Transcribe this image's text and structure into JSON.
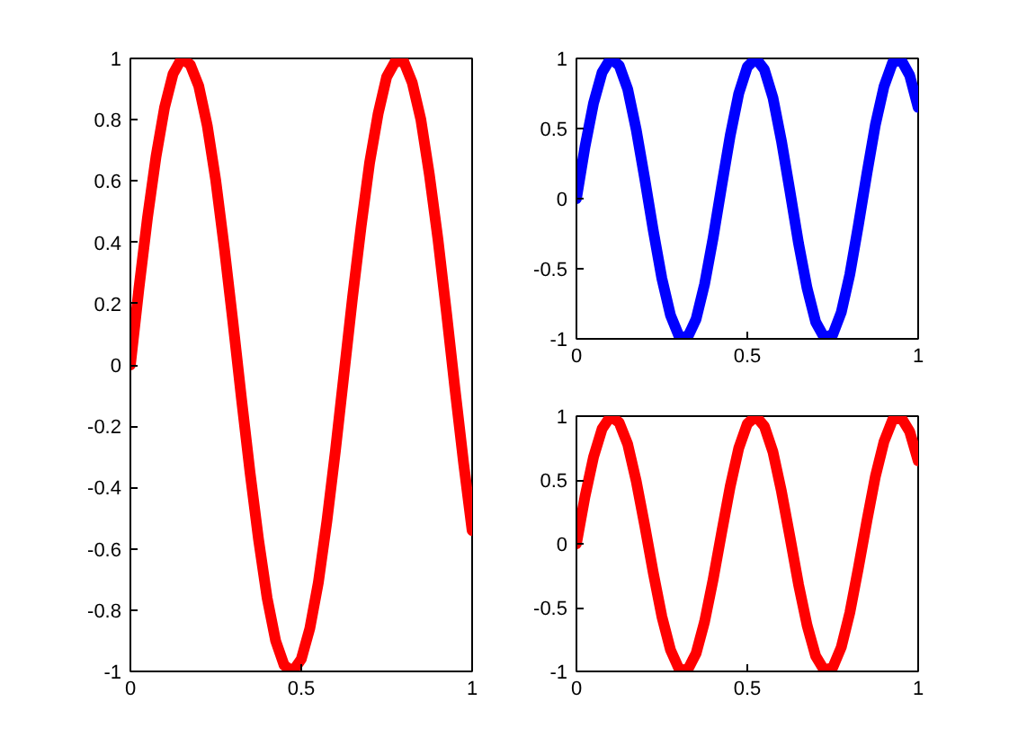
{
  "chart_data": [
    {
      "type": "line",
      "x": [
        0,
        0.025,
        0.05,
        0.075,
        0.1,
        0.125,
        0.15,
        0.175,
        0.2,
        0.225,
        0.25,
        0.275,
        0.3,
        0.325,
        0.35,
        0.375,
        0.4,
        0.425,
        0.45,
        0.475,
        0.5,
        0.525,
        0.55,
        0.575,
        0.6,
        0.625,
        0.65,
        0.675,
        0.7,
        0.725,
        0.75,
        0.775,
        0.8,
        0.825,
        0.85,
        0.875,
        0.9,
        0.925,
        0.95,
        0.975,
        1
      ],
      "series": [
        {
          "color": "#ff0000",
          "values": [
            0,
            0.25,
            0.48,
            0.68,
            0.84,
            0.95,
            1.0,
            0.98,
            0.91,
            0.78,
            0.6,
            0.38,
            0.14,
            -0.11,
            -0.35,
            -0.57,
            -0.76,
            -0.9,
            -0.98,
            -1.0,
            -0.96,
            -0.86,
            -0.71,
            -0.51,
            -0.28,
            -0.03,
            0.22,
            0.45,
            0.66,
            0.82,
            0.94,
            0.99,
            0.99,
            0.92,
            0.8,
            0.62,
            0.41,
            0.17,
            -0.08,
            -0.32,
            -0.54
          ]
        }
      ],
      "xlim": [
        0,
        1
      ],
      "ylim": [
        -1,
        1
      ],
      "xticks": [
        0,
        0.5,
        1
      ],
      "yticks": [
        -1,
        -0.8,
        -0.6,
        -0.4,
        -0.2,
        0,
        0.2,
        0.4,
        0.6,
        0.8,
        1
      ],
      "grid": false,
      "line_style": "solid",
      "marker": "none"
    },
    {
      "type": "line",
      "x": [
        0,
        0.025,
        0.05,
        0.075,
        0.1,
        0.125,
        0.15,
        0.175,
        0.2,
        0.225,
        0.25,
        0.275,
        0.3,
        0.325,
        0.35,
        0.375,
        0.4,
        0.425,
        0.45,
        0.475,
        0.5,
        0.525,
        0.55,
        0.575,
        0.6,
        0.625,
        0.65,
        0.675,
        0.7,
        0.725,
        0.75,
        0.775,
        0.8,
        0.825,
        0.85,
        0.875,
        0.9,
        0.925,
        0.95,
        0.975,
        1
      ],
      "series": [
        {
          "color": "#0000ff",
          "values": [
            0,
            0.37,
            0.68,
            0.9,
            1.0,
            0.95,
            0.78,
            0.49,
            0.14,
            -0.23,
            -0.57,
            -0.83,
            -0.98,
            -0.99,
            -0.86,
            -0.61,
            -0.28,
            0.09,
            0.45,
            0.75,
            0.94,
            1.0,
            0.92,
            0.72,
            0.41,
            0.05,
            -0.32,
            -0.64,
            -0.88,
            -0.99,
            -0.97,
            -0.81,
            -0.54,
            -0.19,
            0.18,
            0.53,
            0.8,
            0.97,
            0.99,
            0.88,
            0.65
          ]
        }
      ],
      "xlim": [
        0,
        1
      ],
      "ylim": [
        -1,
        1
      ],
      "xticks": [
        0,
        0.5,
        1
      ],
      "yticks": [
        -1,
        -0.5,
        0,
        0.5,
        1
      ],
      "grid": false,
      "line_style": "solid",
      "marker": "none"
    },
    {
      "type": "line",
      "x": [
        0,
        0.025,
        0.05,
        0.075,
        0.1,
        0.125,
        0.15,
        0.175,
        0.2,
        0.225,
        0.25,
        0.275,
        0.3,
        0.325,
        0.35,
        0.375,
        0.4,
        0.425,
        0.45,
        0.475,
        0.5,
        0.525,
        0.55,
        0.575,
        0.6,
        0.625,
        0.65,
        0.675,
        0.7,
        0.725,
        0.75,
        0.775,
        0.8,
        0.825,
        0.85,
        0.875,
        0.9,
        0.925,
        0.95,
        0.975,
        1
      ],
      "series": [
        {
          "color": "#ff0000",
          "values": [
            0,
            0.37,
            0.68,
            0.9,
            1.0,
            0.95,
            0.78,
            0.49,
            0.14,
            -0.23,
            -0.57,
            -0.83,
            -0.98,
            -0.99,
            -0.86,
            -0.61,
            -0.28,
            0.09,
            0.45,
            0.75,
            0.94,
            1.0,
            0.92,
            0.72,
            0.41,
            0.05,
            -0.32,
            -0.64,
            -0.88,
            -0.99,
            -0.97,
            -0.81,
            -0.54,
            -0.19,
            0.18,
            0.53,
            0.8,
            0.97,
            0.99,
            0.88,
            0.65
          ]
        }
      ],
      "xlim": [
        0,
        1
      ],
      "ylim": [
        -1,
        1
      ],
      "xticks": [
        0,
        0.5,
        1
      ],
      "yticks": [
        -1,
        -0.5,
        0,
        0.5,
        1
      ],
      "grid": false,
      "line_style": "solid",
      "marker": "none"
    }
  ]
}
